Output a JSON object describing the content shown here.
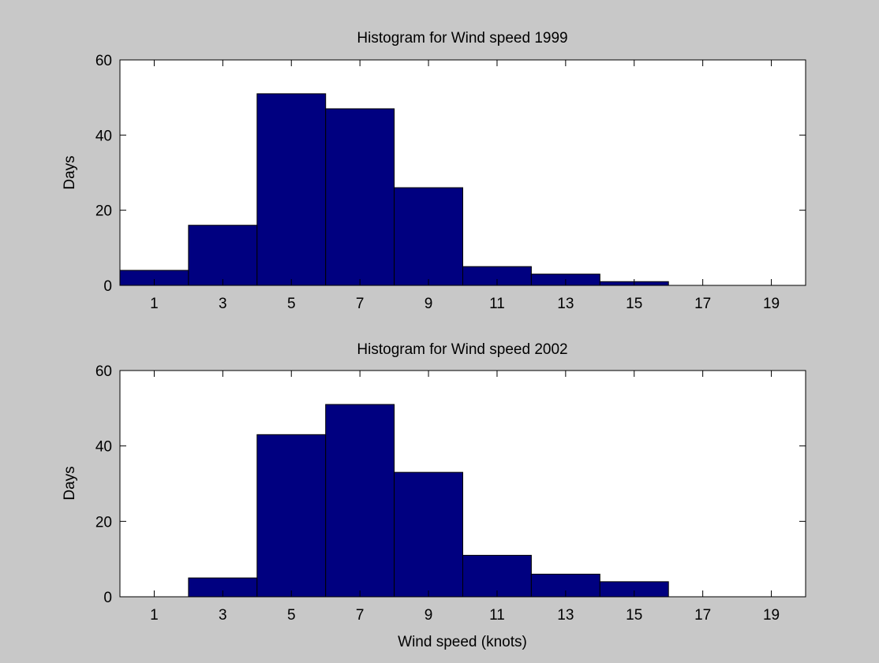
{
  "figure": {
    "background": "#c8c8c8",
    "axes_background": "#ffffff",
    "bar_color": "#000080",
    "bar_edge_color": "#000000"
  },
  "chart_data": [
    {
      "type": "bar",
      "title": "Histogram for Wind speed 1999",
      "xlabel": "",
      "ylabel": "Days",
      "bin_width": 2,
      "bin_centers": [
        1,
        3,
        5,
        7,
        9,
        11,
        13,
        15,
        17,
        19
      ],
      "values": [
        4,
        16,
        51,
        47,
        26,
        5,
        3,
        1,
        0,
        0
      ],
      "xlim": [
        0,
        20
      ],
      "ylim": [
        0,
        60
      ],
      "xticks": [
        "1",
        "3",
        "5",
        "7",
        "9",
        "11",
        "13",
        "15",
        "17",
        "19"
      ],
      "yticks": [
        "0",
        "20",
        "40",
        "60"
      ],
      "grid": false
    },
    {
      "type": "bar",
      "title": "Histogram for Wind speed 2002",
      "xlabel": "Wind speed (knots)",
      "ylabel": "Days",
      "bin_width": 2,
      "bin_centers": [
        1,
        3,
        5,
        7,
        9,
        11,
        13,
        15,
        17,
        19
      ],
      "values": [
        0,
        5,
        43,
        51,
        33,
        11,
        6,
        4,
        0,
        0
      ],
      "xlim": [
        0,
        20
      ],
      "ylim": [
        0,
        60
      ],
      "xticks": [
        "1",
        "3",
        "5",
        "7",
        "9",
        "11",
        "13",
        "15",
        "17",
        "19"
      ],
      "yticks": [
        "0",
        "20",
        "40",
        "60"
      ],
      "grid": false
    }
  ]
}
